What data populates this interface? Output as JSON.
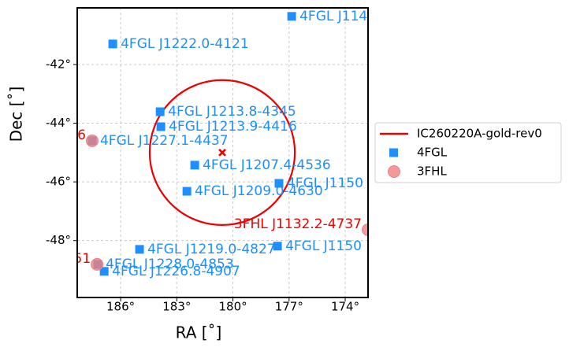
{
  "chart_data": {
    "type": "scatter",
    "xlabel": "RA [˚]",
    "ylabel": "Dec [˚]",
    "xlim": [
      188.32,
      172.78
    ],
    "ylim": [
      -49.94,
      -40.07
    ],
    "xticks": [
      {
        "value": 186,
        "label": "186°"
      },
      {
        "value": 183,
        "label": "183°"
      },
      {
        "value": 180,
        "label": "180°"
      },
      {
        "value": 177,
        "label": "177°"
      },
      {
        "value": 174,
        "label": "174°"
      }
    ],
    "yticks": [
      {
        "value": -42,
        "label": "-42°"
      },
      {
        "value": -44,
        "label": "-44°"
      },
      {
        "value": -46,
        "label": "-46°"
      },
      {
        "value": -48,
        "label": "-48°"
      }
    ],
    "grid": true,
    "legend": "right",
    "series": [
      {
        "name": "IC260220A-gold-rev0",
        "color": "#ee0000",
        "marker": "ring",
        "x": [
          180.57
        ],
        "y": [
          -45.0
        ],
        "radius": [
          2.47
        ]
      },
      {
        "name": "4FGL",
        "color": "#1e8fff",
        "marker": "square",
        "x": [
          176.86,
          186.42,
          183.89,
          183.85,
          187.52,
          182.04,
          182.46,
          177.54,
          184.99,
          177.62,
          187.22,
          186.88
        ],
        "y": [
          -40.36,
          -41.3,
          -43.61,
          -44.12,
          -44.6,
          -45.43,
          -46.32,
          -46.05,
          -48.3,
          -48.19,
          -48.81,
          -49.05
        ],
        "labels": [
          "4FGL J114",
          "4FGL J1222.0-4121",
          "4FGL J1213.8-4345",
          "4FGL J1213.9-4416",
          "4FGL J1227.1-4437",
          "4FGL J1207.4-4536",
          "4FGL J1209.0-4630",
          "4FGL J1150",
          "4FGL J1219.0-4827",
          "4FGL J1150",
          "4FGL J1228.0-4853",
          "4FGL J1226.8-4907"
        ],
        "label_color": "#1e8fff",
        "label_anchor": "start"
      },
      {
        "name": "3FHL",
        "color": "#f08080",
        "marker": "circle",
        "x": [
          187.52,
          187.26,
          172.78
        ],
        "y": [
          -44.6,
          -48.81,
          -47.63
        ],
        "labels": [
          "6",
          "51",
          "3FHL J1132.2-4737"
        ],
        "label_color": "#ee0000",
        "label_anchor": "end"
      }
    ]
  }
}
